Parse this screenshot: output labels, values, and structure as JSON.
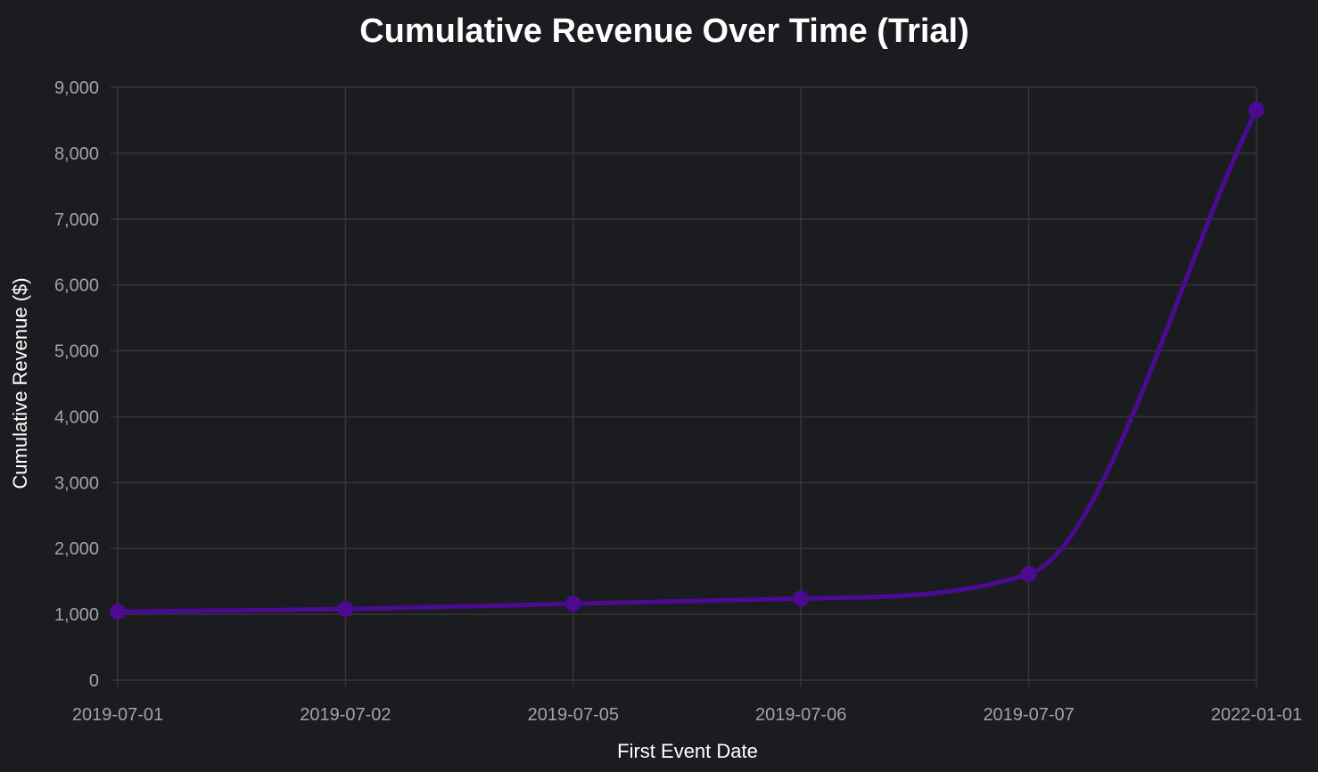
{
  "chart_data": {
    "type": "line",
    "title": "Cumulative Revenue Over Time (Trial)",
    "xlabel": "First Event Date",
    "ylabel": "Cumulative Revenue ($)",
    "categories": [
      "2019-07-01",
      "2019-07-02",
      "2019-07-05",
      "2019-07-06",
      "2019-07-07",
      "2022-01-01"
    ],
    "series": [
      {
        "values": [
          1040,
          1080,
          1160,
          1240,
          1610,
          8660
        ],
        "color": "#4b0a91"
      }
    ],
    "ylim": [
      0,
      9000
    ],
    "yticks": [
      0,
      1000,
      2000,
      3000,
      4000,
      5000,
      6000,
      7000,
      8000,
      9000
    ],
    "ytick_labels": [
      "0",
      "1,000",
      "2,000",
      "3,000",
      "4,000",
      "5,000",
      "6,000",
      "7,000",
      "8,000",
      "9,000"
    ],
    "grid": true,
    "background": "#1b1c1f"
  }
}
